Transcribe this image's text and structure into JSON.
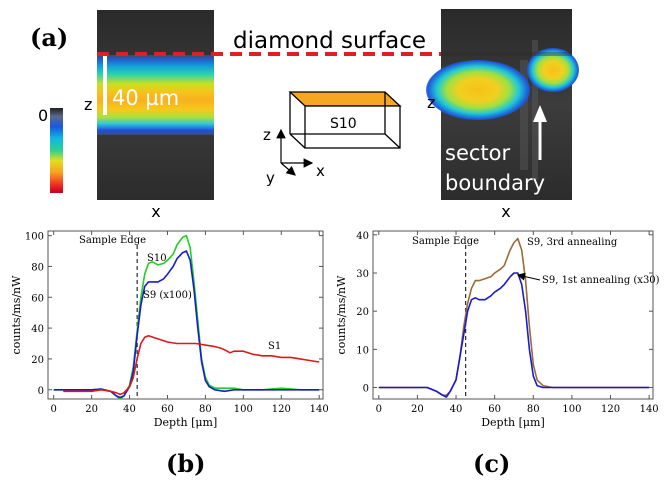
{
  "panel_a": {
    "label": "(a)",
    "diamond_surface_label": "diamond surface",
    "scale_bar_label": "40 µm",
    "colorbar_top_label": "0",
    "left_image_x_label": "x",
    "left_image_z_label": "z",
    "right_image_x_label": "x",
    "right_image_z_label": "z",
    "sector_boundary_line1": "sector",
    "sector_boundary_line2": "boundary",
    "sample_box_label": "S10",
    "axis_z": "z",
    "axis_y": "y",
    "axis_x": "x",
    "colors": {
      "surface_line": "#e02020",
      "sample_top": "#f5a623"
    }
  },
  "panel_b": {
    "label": "(b)",
    "sample_edge_label": "Sample Edge",
    "curve_labels": {
      "s10": "S10",
      "s9": "S9 (x100)",
      "s1": "S1"
    }
  },
  "panel_c": {
    "label": "(c)",
    "sample_edge_label": "Sample Edge",
    "curve_labels": {
      "third": "S9, 3rd annealing",
      "first": "S9, 1st annealing (x30)"
    }
  },
  "chart_data": [
    {
      "type": "line",
      "xlabel": "Depth [μm]",
      "ylabel": "counts/ms/nW",
      "xlim": [
        -3,
        142
      ],
      "ylim": [
        -6,
        103
      ],
      "xticks": [
        0,
        20,
        40,
        60,
        80,
        100,
        120,
        140
      ],
      "yticks": [
        0,
        20,
        40,
        60,
        80,
        100
      ],
      "sample_edge_x": 44,
      "series": [
        {
          "name": "S10",
          "color": "#1fd01f",
          "x": [
            0,
            10,
            20,
            25,
            30,
            33,
            35,
            37,
            40,
            42,
            44,
            46,
            48,
            50,
            52,
            55,
            58,
            60,
            63,
            65,
            68,
            70,
            72,
            74,
            76,
            78,
            80,
            82,
            85,
            90,
            95,
            100,
            110,
            120,
            130,
            140
          ],
          "y": [
            0,
            0,
            0,
            0.5,
            -1,
            -4,
            -6,
            -4,
            3,
            15,
            38,
            60,
            75,
            82,
            83,
            81,
            82,
            84,
            88,
            94,
            99,
            100,
            92,
            70,
            45,
            20,
            8,
            3,
            1,
            1,
            1,
            0,
            0,
            1,
            0,
            0
          ]
        },
        {
          "name": "S9 (x100)",
          "color": "#1a1ad0",
          "x": [
            0,
            10,
            20,
            25,
            30,
            33,
            35,
            37,
            40,
            42,
            44,
            46,
            48,
            50,
            52,
            55,
            58,
            60,
            63,
            65,
            68,
            70,
            72,
            74,
            76,
            78,
            80,
            82,
            85,
            90,
            95,
            100,
            110,
            120,
            130,
            140
          ],
          "y": [
            0,
            0,
            0,
            0.5,
            -1,
            -4,
            -5,
            -4,
            2,
            12,
            35,
            55,
            67,
            70,
            70,
            70,
            72,
            75,
            80,
            85,
            89,
            90,
            84,
            65,
            40,
            18,
            6,
            2,
            0,
            -1,
            0,
            0,
            0,
            0,
            0,
            0
          ]
        },
        {
          "name": "S1",
          "color": "#e01818",
          "x": [
            5,
            10,
            20,
            25,
            30,
            33,
            35,
            37,
            40,
            42,
            44,
            46,
            48,
            50,
            55,
            60,
            65,
            70,
            75,
            80,
            85,
            88,
            90,
            93,
            95,
            100,
            105,
            110,
            115,
            120,
            125,
            130,
            135,
            140
          ],
          "y": [
            -1,
            -1,
            -1,
            0,
            -1,
            -2,
            -3,
            -2,
            2,
            8,
            20,
            30,
            34,
            35,
            33,
            31,
            30,
            30,
            30,
            29,
            28,
            27,
            26,
            24,
            25,
            25,
            23,
            22,
            22,
            21,
            21,
            20,
            19,
            18
          ]
        }
      ]
    },
    {
      "type": "line",
      "xlabel": "Depth [μm]",
      "ylabel": "counts/ms/nW",
      "xlim": [
        -3,
        142
      ],
      "ylim": [
        -3,
        41
      ],
      "xticks": [
        0,
        20,
        40,
        60,
        80,
        100,
        120,
        140
      ],
      "yticks": [
        0,
        10,
        20,
        30,
        40
      ],
      "sample_edge_x": 45,
      "series": [
        {
          "name": "S9, 3rd annealing",
          "color": "#9a6a3a",
          "x": [
            0,
            10,
            20,
            25,
            30,
            33,
            35,
            37,
            40,
            42,
            44,
            46,
            48,
            50,
            52,
            55,
            58,
            60,
            63,
            65,
            68,
            70,
            72,
            74,
            76,
            78,
            80,
            82,
            85,
            90,
            95,
            100,
            110,
            120,
            130,
            140
          ],
          "y": [
            0,
            0,
            0,
            0,
            -1,
            -2,
            -2,
            -1,
            2,
            8,
            16,
            22,
            26,
            28,
            28,
            28.5,
            29,
            30,
            31,
            32,
            36,
            38,
            39,
            36,
            28,
            16,
            6,
            2,
            0.5,
            0,
            0,
            0,
            0,
            0,
            0,
            0
          ]
        },
        {
          "name": "S9, 1st annealing (x30)",
          "color": "#1a1ad0",
          "x": [
            0,
            10,
            20,
            25,
            30,
            33,
            35,
            37,
            40,
            42,
            44,
            46,
            48,
            50,
            52,
            55,
            58,
            60,
            63,
            65,
            68,
            70,
            72,
            74,
            76,
            78,
            80,
            82,
            85,
            90,
            95,
            100,
            110,
            120,
            130,
            140
          ],
          "y": [
            0,
            0,
            0,
            0,
            -1,
            -2,
            -2.5,
            -1,
            2,
            8,
            14,
            20,
            23,
            23.5,
            23,
            23,
            24,
            25,
            26,
            27,
            29,
            30,
            30,
            27,
            20,
            10,
            3,
            0.5,
            0,
            0,
            0,
            0,
            0,
            0,
            0,
            0
          ]
        }
      ]
    }
  ]
}
